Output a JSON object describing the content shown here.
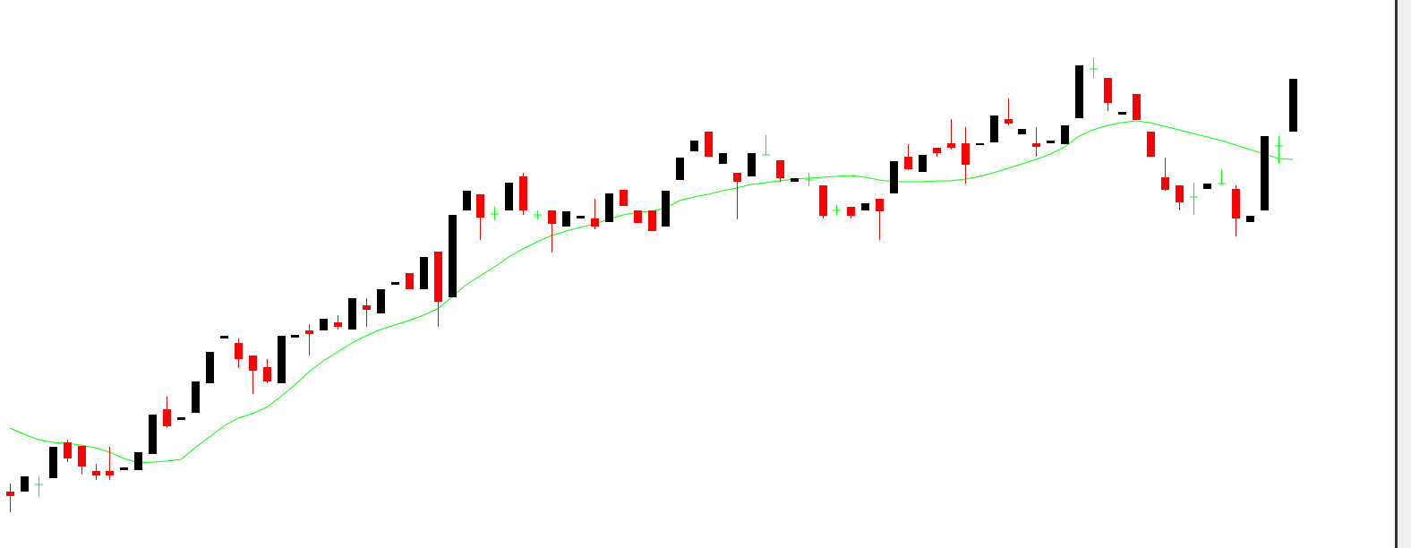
{
  "chart_data": {
    "type": "candlestick",
    "ylim": [
      0,
      612
    ],
    "up_color": "#000000",
    "down_color": "#ff0000",
    "doji_color": "#00ff00",
    "open": [
      63,
      63,
      71,
      78,
      118,
      114,
      86,
      86,
      87,
      87,
      105,
      155,
      143,
      151,
      184,
      234,
      229,
      215,
      202,
      184,
      235,
      243,
      243,
      252,
      244,
      271,
      262,
      294,
      307,
      289,
      331,
      280,
      377,
      395,
      373,
      377,
      415,
      372,
      377,
      359,
      368,
      368,
      364,
      400,
      377,
      377,
      359,
      411,
      443,
      465,
      429,
      419,
      415,
      439,
      433,
      409,
      411,
      405,
      377,
      381,
      377,
      390,
      396,
      437,
      420,
      447,
      452,
      452,
      450,
      453,
      479,
      462,
      452,
      452,
      451,
      480,
      535,
      525,
      484,
      507,
      465,
      414,
      405,
      392,
      401,
      407,
      401,
      364,
      377,
      449,
      465
    ],
    "close": [
      58,
      80,
      71,
      113,
      100,
      91,
      81,
      81,
      90,
      107,
      149,
      136,
      146,
      186,
      219,
      237,
      211,
      198,
      186,
      237,
      238,
      239,
      256,
      247,
      279,
      266,
      289,
      297,
      289,
      325,
      275,
      372,
      399,
      369,
      373,
      408,
      377,
      372,
      362,
      376,
      371,
      359,
      396,
      382,
      363,
      354,
      399,
      436,
      455,
      437,
      441,
      409,
      441,
      439,
      413,
      413,
      411,
      371,
      377,
      371,
      385,
      376,
      432,
      423,
      439,
      441,
      447,
      428,
      452,
      483,
      474,
      468,
      448,
      455,
      472,
      539,
      535,
      497,
      487,
      478,
      437,
      400,
      386,
      392,
      407,
      407,
      368,
      371,
      460,
      449,
      524
    ],
    "high": [
      72,
      80,
      80,
      113,
      121,
      114,
      94,
      113,
      90,
      107,
      149,
      169,
      146,
      186,
      219,
      237,
      234,
      215,
      211,
      237,
      238,
      250,
      256,
      260,
      279,
      279,
      289,
      297,
      307,
      325,
      331,
      372,
      399,
      395,
      381,
      408,
      419,
      377,
      377,
      376,
      371,
      390,
      396,
      400,
      377,
      377,
      399,
      436,
      455,
      465,
      441,
      419,
      441,
      461,
      433,
      413,
      419,
      405,
      383,
      381,
      385,
      390,
      432,
      451,
      439,
      447,
      479,
      470,
      452,
      483,
      502,
      468,
      470,
      455,
      472,
      539,
      547,
      525,
      487,
      507,
      465,
      436,
      405,
      408,
      407,
      423,
      405,
      371,
      460,
      460,
      524
    ],
    "low": [
      40,
      63,
      57,
      78,
      96,
      82,
      76,
      76,
      87,
      87,
      105,
      134,
      143,
      151,
      184,
      234,
      201,
      172,
      184,
      184,
      235,
      215,
      243,
      244,
      244,
      247,
      262,
      294,
      289,
      289,
      247,
      280,
      377,
      344,
      366,
      377,
      372,
      367,
      330,
      359,
      368,
      356,
      364,
      382,
      363,
      354,
      359,
      411,
      443,
      437,
      429,
      367,
      415,
      439,
      409,
      409,
      404,
      368,
      371,
      368,
      377,
      344,
      396,
      422,
      420,
      437,
      445,
      407,
      450,
      453,
      472,
      462,
      437,
      452,
      451,
      480,
      525,
      488,
      484,
      478,
      437,
      399,
      377,
      372,
      401,
      406,
      348,
      364,
      377,
      429,
      465
    ],
    "series": [
      {
        "color": "#00ff00",
        "values": [
          134,
          127,
          121,
          118,
          117,
          115,
          112,
          107,
          100,
          95,
          96,
          97,
          99,
          112,
          124,
          136,
          145,
          150,
          157,
          169,
          182,
          197,
          209,
          219,
          229,
          237,
          244,
          249,
          254,
          260,
          267,
          280,
          294,
          304,
          314,
          325,
          334,
          342,
          349,
          354,
          358,
          362,
          367,
          372,
          375,
          376,
          380,
          388,
          392,
          395,
          399,
          402,
          406,
          408,
          410,
          412,
          413,
          414,
          415,
          416,
          414,
          411,
          409,
          409,
          409,
          410,
          410,
          412,
          415,
          419,
          424,
          429,
          434,
          440,
          448,
          460,
          467,
          472,
          475,
          477,
          475,
          471,
          467,
          463,
          459,
          455,
          450,
          445,
          440,
          435,
          434
        ]
      }
    ]
  }
}
